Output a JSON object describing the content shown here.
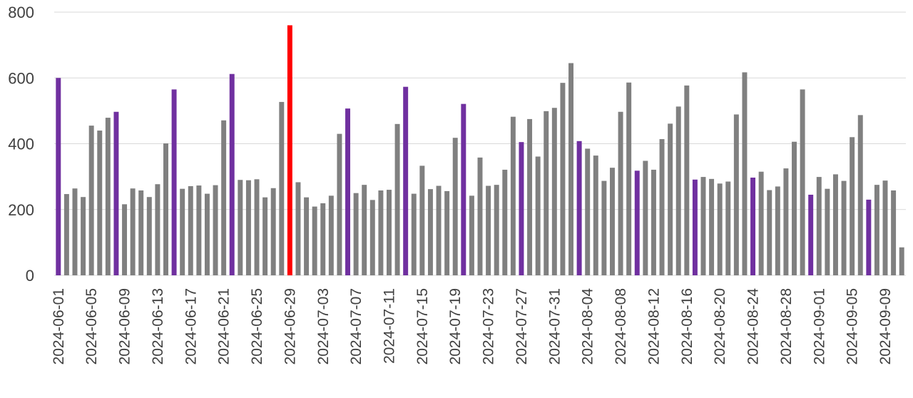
{
  "chart_data": {
    "type": "bar",
    "title": "",
    "xlabel": "",
    "ylabel": "",
    "ylim": [
      0,
      800
    ],
    "yticks": [
      0,
      200,
      400,
      600,
      800
    ],
    "grid": true,
    "legend": "none",
    "x_tick_labels": [
      "2024-06-01",
      "2024-06-05",
      "2024-06-09",
      "2024-06-13",
      "2024-06-17",
      "2024-06-21",
      "2024-06-25",
      "2024-06-29",
      "2024-07-03",
      "2024-07-07",
      "2024-07-11",
      "2024-07-15",
      "2024-07-19",
      "2024-07-23",
      "2024-07-27",
      "2024-07-31",
      "2024-08-04",
      "2024-08-08",
      "2024-08-12",
      "2024-08-16",
      "2024-08-20",
      "2024-08-24",
      "2024-08-28",
      "2024-09-01",
      "2024-09-05",
      "2024-09-09"
    ],
    "start_date": "2024-06-01",
    "colors": {
      "default": "#808080",
      "weekly": "#7030a0",
      "max": "#ff0000",
      "grid": "#d9d9d9"
    },
    "highlight_weekly_dates": [
      "2024-06-01",
      "2024-06-08",
      "2024-06-15",
      "2024-06-22",
      "2024-06-29",
      "2024-07-06",
      "2024-07-13",
      "2024-07-20",
      "2024-07-27",
      "2024-08-03",
      "2024-08-10",
      "2024-08-17",
      "2024-08-24",
      "2024-08-31",
      "2024-09-07"
    ],
    "max_date": "2024-06-29",
    "values": [
      600,
      247,
      264,
      238,
      455,
      440,
      479,
      497,
      216,
      264,
      258,
      238,
      277,
      401,
      565,
      263,
      271,
      273,
      248,
      274,
      471,
      612,
      290,
      289,
      292,
      237,
      265,
      527,
      760,
      283,
      237,
      209,
      219,
      242,
      430,
      507,
      250,
      275,
      229,
      258,
      260,
      460,
      573,
      248,
      333,
      262,
      272,
      256,
      418,
      521,
      242,
      358,
      272,
      275,
      321,
      482,
      405,
      475,
      361,
      499,
      509,
      585,
      645,
      408,
      385,
      364,
      287,
      327,
      497,
      586,
      318,
      348,
      321,
      414,
      461,
      513,
      577,
      291,
      299,
      293,
      279,
      285,
      489,
      617,
      297,
      315,
      259,
      270,
      325,
      406,
      565,
      245,
      299,
      263,
      307,
      287,
      420,
      487,
      230,
      275,
      288,
      258,
      85
    ]
  }
}
